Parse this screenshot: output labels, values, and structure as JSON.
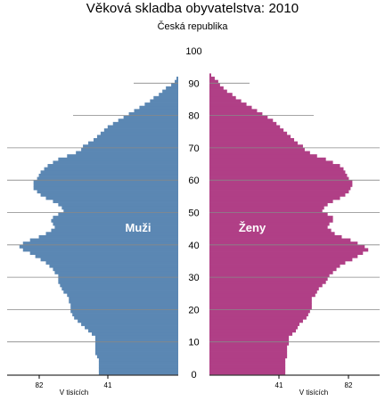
{
  "chart_data": {
    "type": "bar",
    "title": "Věková skladba obyvatelstva: 2010",
    "subtitle": "Česká republika",
    "y_axis_ticks": [
      0,
      10,
      20,
      30,
      40,
      50,
      60,
      70,
      80,
      90,
      100
    ],
    "x_ticks_left": [
      "82",
      "41"
    ],
    "x_ticks_right": [
      "41",
      "82"
    ],
    "x_unit_label_left": "V tisících",
    "x_unit_label_right": "V tisících",
    "x_max": 100,
    "colors": {
      "male": "#5b87b3",
      "female": "#b03f86",
      "grid": "#888888"
    },
    "series": [
      {
        "name": "Muži",
        "values": [
          45,
          45,
          45,
          45,
          45,
          46,
          47,
          47,
          47,
          47,
          47,
          47,
          49,
          51,
          53,
          55,
          57,
          59,
          60,
          61,
          61,
          61,
          62,
          62,
          63,
          65,
          66,
          67,
          68,
          68,
          68,
          70,
          71,
          73,
          75,
          78,
          81,
          84,
          88,
          90,
          88,
          84,
          79,
          75,
          72,
          70,
          71,
          72,
          71,
          68,
          65,
          66,
          68,
          71,
          75,
          78,
          80,
          82,
          82,
          82,
          80,
          79,
          78,
          76,
          74,
          71,
          68,
          63,
          58,
          55,
          54,
          51,
          48,
          46,
          44,
          42,
          40,
          37,
          34,
          31,
          28,
          25,
          22,
          19,
          16,
          14,
          11,
          9,
          7,
          4,
          2,
          1,
          0,
          0,
          0,
          0,
          0,
          0,
          0,
          0
        ]
      },
      {
        "name": "Ženy",
        "values": [
          43,
          43,
          43,
          43,
          43,
          44,
          44,
          44,
          44,
          45,
          45,
          45,
          47,
          49,
          50,
          51,
          53,
          55,
          56,
          57,
          58,
          58,
          58,
          58,
          60,
          61,
          62,
          64,
          66,
          67,
          68,
          70,
          72,
          74,
          77,
          81,
          84,
          87,
          90,
          88,
          84,
          80,
          75,
          71,
          69,
          67,
          68,
          70,
          70,
          67,
          64,
          65,
          67,
          70,
          74,
          77,
          79,
          80,
          81,
          81,
          79,
          78,
          77,
          76,
          74,
          70,
          66,
          61,
          57,
          54,
          53,
          50,
          48,
          46,
          44,
          42,
          40,
          38,
          36,
          33,
          30,
          27,
          24,
          21,
          18,
          15,
          13,
          10,
          8,
          6,
          5,
          3,
          1,
          0,
          0,
          0,
          0,
          0,
          0,
          0
        ]
      }
    ]
  }
}
